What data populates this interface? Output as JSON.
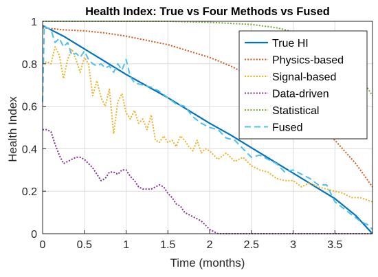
{
  "chart_data": {
    "type": "line",
    "title": "Health Index: True vs Four Methods vs Fused",
    "xlabel": "Time (months)",
    "ylabel": "Health Index",
    "xlim": [
      0,
      3.95
    ],
    "ylim": [
      0,
      1
    ],
    "x_ticks": [
      0,
      0.5,
      1,
      1.5,
      2,
      2.5,
      3,
      3.5
    ],
    "x_tick_labels": [
      "0",
      "0.5",
      "1",
      "1.5",
      "2",
      "2.5",
      "3",
      "3.5"
    ],
    "y_ticks": [
      0,
      0.2,
      0.4,
      0.6,
      0.8,
      1
    ],
    "y_tick_labels": [
      "0",
      "0.2",
      "0.4",
      "0.6",
      "0.8",
      "1"
    ],
    "grid": true,
    "legend_position": "top-right",
    "series": [
      {
        "name": "True HI",
        "color": "#0072BD",
        "style": "solid",
        "x": [
          0,
          0.25,
          0.5,
          0.75,
          1,
          1.25,
          1.5,
          1.75,
          2,
          2.25,
          2.5,
          2.75,
          3,
          3.25,
          3.5,
          3.75,
          3.95
        ],
        "y": [
          0.98,
          0.93,
          0.87,
          0.81,
          0.75,
          0.695,
          0.64,
          0.58,
          0.52,
          0.465,
          0.405,
          0.345,
          0.285,
          0.225,
          0.165,
          0.085,
          0.0
        ]
      },
      {
        "name": "Physics-based",
        "color": "#D95319",
        "style": "dotted",
        "x": [
          0,
          0.25,
          0.5,
          0.75,
          1,
          1.25,
          1.5,
          1.75,
          2,
          2.25,
          2.5,
          2.75,
          3,
          3.25,
          3.5,
          3.75,
          3.95
        ],
        "y": [
          0.97,
          0.96,
          0.955,
          0.945,
          0.93,
          0.91,
          0.89,
          0.86,
          0.83,
          0.79,
          0.74,
          0.69,
          0.62,
          0.53,
          0.44,
          0.33,
          0.22
        ]
      },
      {
        "name": "Signal-based",
        "color": "#EDB120",
        "style": "dotted",
        "x": [
          0,
          0.05,
          0.1,
          0.15,
          0.2,
          0.25,
          0.3,
          0.35,
          0.4,
          0.45,
          0.5,
          0.55,
          0.6,
          0.65,
          0.7,
          0.75,
          0.8,
          0.85,
          0.9,
          0.95,
          1.0,
          1.05,
          1.1,
          1.15,
          1.2,
          1.25,
          1.3,
          1.35,
          1.4,
          1.45,
          1.5,
          1.55,
          1.6,
          1.65,
          1.7,
          1.75,
          1.8,
          1.85,
          1.9,
          1.95,
          2.0,
          2.1,
          2.2,
          2.3,
          2.4,
          2.5,
          2.6,
          2.7,
          2.8,
          2.9,
          3.0,
          3.1,
          3.2,
          3.3,
          3.4,
          3.5,
          3.6,
          3.7,
          3.8,
          3.95
        ],
        "y": [
          0.8,
          0.81,
          0.8,
          0.88,
          0.84,
          0.73,
          0.82,
          0.87,
          0.82,
          0.76,
          0.83,
          0.8,
          0.65,
          0.72,
          0.64,
          0.6,
          0.68,
          0.47,
          0.62,
          0.66,
          0.57,
          0.54,
          0.58,
          0.52,
          0.54,
          0.49,
          0.56,
          0.44,
          0.43,
          0.46,
          0.43,
          0.44,
          0.41,
          0.46,
          0.44,
          0.41,
          0.39,
          0.44,
          0.38,
          0.4,
          0.39,
          0.35,
          0.38,
          0.34,
          0.36,
          0.32,
          0.3,
          0.29,
          0.26,
          0.25,
          0.25,
          0.22,
          0.24,
          0.22,
          0.21,
          0.2,
          0.19,
          0.17,
          0.17,
          0.15
        ]
      },
      {
        "name": "Data-driven",
        "color": "#7E2F8E",
        "style": "dotted",
        "x": [
          0,
          0.05,
          0.1,
          0.15,
          0.2,
          0.25,
          0.3,
          0.35,
          0.4,
          0.45,
          0.5,
          0.55,
          0.6,
          0.65,
          0.7,
          0.75,
          0.8,
          0.85,
          0.9,
          0.95,
          1.0,
          1.05,
          1.1,
          1.15,
          1.2,
          1.25,
          1.3,
          1.35,
          1.4,
          1.45,
          1.5,
          1.55,
          1.6,
          1.65,
          1.7,
          1.75,
          1.8,
          1.85,
          1.9,
          1.95,
          2.0,
          2.05,
          2.1,
          2.5,
          3.0,
          3.5,
          3.95
        ],
        "y": [
          0.49,
          0.49,
          0.48,
          0.42,
          0.37,
          0.33,
          0.34,
          0.35,
          0.36,
          0.36,
          0.35,
          0.33,
          0.31,
          0.28,
          0.25,
          0.26,
          0.29,
          0.29,
          0.28,
          0.3,
          0.3,
          0.27,
          0.25,
          0.22,
          0.21,
          0.21,
          0.21,
          0.22,
          0.23,
          0.22,
          0.19,
          0.17,
          0.14,
          0.13,
          0.1,
          0.09,
          0.08,
          0.07,
          0.06,
          0.04,
          0.02,
          0.01,
          0.0,
          0.0,
          0.0,
          0.0,
          0.0
        ]
      },
      {
        "name": "Statistical",
        "color": "#77AC30",
        "style": "dotted",
        "x": [
          0,
          0.5,
          1,
          1.5,
          2,
          2.5,
          2.8,
          3.0,
          3.2,
          3.4,
          3.6,
          3.8,
          3.95
        ],
        "y": [
          1.0,
          1.0,
          1.0,
          1.0,
          0.995,
          0.985,
          0.97,
          0.95,
          0.92,
          0.88,
          0.82,
          0.74,
          0.65
        ]
      },
      {
        "name": "Fused",
        "color": "#4DBEEE",
        "style": "dashed",
        "x": [
          0,
          0.02,
          0.05,
          0.1,
          0.15,
          0.2,
          0.25,
          0.3,
          0.35,
          0.4,
          0.45,
          0.5,
          0.55,
          0.6,
          0.65,
          0.7,
          0.75,
          0.8,
          0.85,
          0.9,
          0.95,
          1.0,
          1.05,
          1.1,
          1.2,
          1.3,
          1.4,
          1.5,
          1.6,
          1.7,
          1.8,
          1.9,
          2.0,
          2.1,
          2.2,
          2.3,
          2.4,
          2.5,
          2.6,
          2.7,
          2.8,
          2.9,
          3.0,
          3.1,
          3.2,
          3.3,
          3.4,
          3.5,
          3.6,
          3.7,
          3.8,
          3.9,
          3.95
        ],
        "y": [
          0.62,
          0.98,
          0.97,
          0.96,
          0.9,
          0.92,
          0.88,
          0.9,
          0.84,
          0.85,
          0.83,
          0.86,
          0.82,
          0.8,
          0.79,
          0.8,
          0.78,
          0.79,
          0.76,
          0.8,
          0.77,
          0.82,
          0.74,
          0.71,
          0.7,
          0.69,
          0.67,
          0.64,
          0.61,
          0.6,
          0.55,
          0.52,
          0.5,
          0.49,
          0.45,
          0.44,
          0.4,
          0.36,
          0.37,
          0.35,
          0.33,
          0.29,
          0.3,
          0.28,
          0.26,
          0.23,
          0.23,
          0.15,
          0.12,
          0.09,
          0.06,
          0.04,
          0.02
        ]
      }
    ]
  }
}
